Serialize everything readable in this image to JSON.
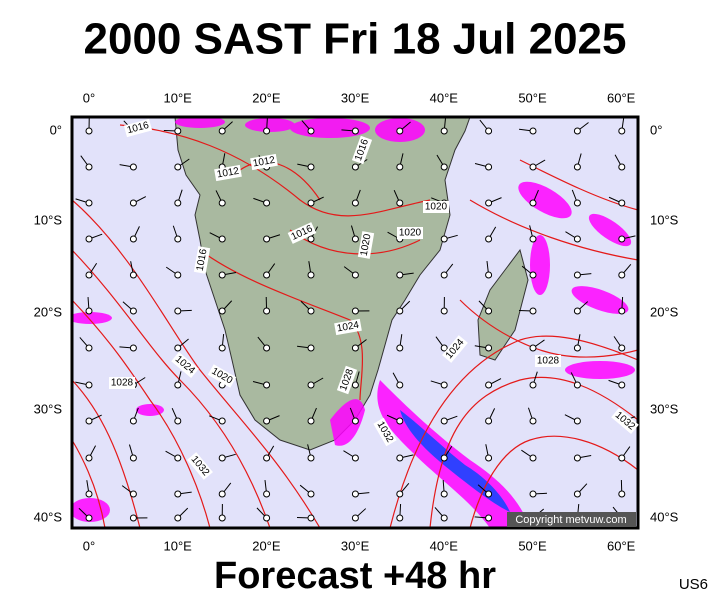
{
  "header": {
    "title": "2000 SAST Fri 18 Jul 2025"
  },
  "footer": {
    "subtitle": "Forecast +48 hr",
    "code": "US6"
  },
  "map": {
    "lon_labels": [
      "0°",
      "10°E",
      "20°E",
      "30°E",
      "40°E",
      "50°E",
      "60°E"
    ],
    "lat_labels": [
      "0°",
      "10°S",
      "20°S",
      "30°S",
      "40°S"
    ],
    "isobar_labels": [
      "1016",
      "1012",
      "1012",
      "1016",
      "1016",
      "1020",
      "1020",
      "1020",
      "1016",
      "1024",
      "1024",
      "1020",
      "1028",
      "1024",
      "1028",
      "1028",
      "1032",
      "1032",
      "1032"
    ],
    "copyright": "Copyright metvuw.com"
  }
}
